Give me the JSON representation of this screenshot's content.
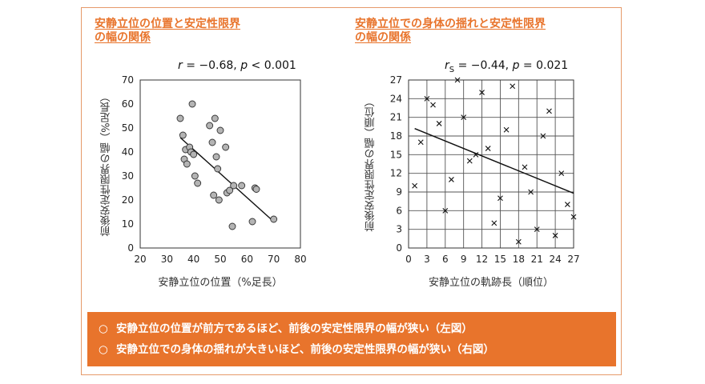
{
  "left": {
    "title_line1": "安静立位の位置と安定性限界",
    "title_line2": "の幅の関係",
    "stat": {
      "r_label": "r",
      "r_value": " = −0.68, ",
      "p_label": "p",
      "p_value": " < 0.001"
    }
  },
  "right": {
    "title_line1": "安静立位での身体の揺れと安定性限界",
    "title_line2": "の幅の関係",
    "stat": {
      "r_label": "r",
      "r_sub": "S",
      "r_value": " = −0.44, ",
      "p_label": "p",
      "p_value": " = 0.021"
    }
  },
  "summary": {
    "bullet": "○",
    "lines": [
      "安静立位の位置が前方であるほど、前後の安定性限界の幅が狭い（左図）",
      "安静立位での身体の揺れが大きいほど、前後の安定性限界の幅が狭い（右図）"
    ]
  },
  "colors": {
    "accent": "#e8742c",
    "marker_fill": "#b4b4b4",
    "grid": "#555555"
  },
  "chart_data": [
    {
      "type": "scatter",
      "marker": "circle",
      "xlabel": "安静立位の位置（%足長）",
      "ylabel": "前後安定性限界の幅（%足長）",
      "xlim": [
        20,
        80
      ],
      "ylim": [
        0,
        70
      ],
      "xticks": [
        20,
        30,
        40,
        50,
        60,
        70,
        80
      ],
      "yticks": [
        0,
        10,
        20,
        30,
        40,
        50,
        60,
        70
      ],
      "grid": false,
      "points": [
        [
          35,
          54
        ],
        [
          36,
          47
        ],
        [
          37,
          41
        ],
        [
          36.5,
          37
        ],
        [
          37.5,
          35
        ],
        [
          39.5,
          60
        ],
        [
          38.5,
          42
        ],
        [
          39,
          40
        ],
        [
          40,
          39
        ],
        [
          40.5,
          30
        ],
        [
          41.5,
          27
        ],
        [
          46,
          51
        ],
        [
          47,
          44
        ],
        [
          48,
          54
        ],
        [
          48.5,
          38
        ],
        [
          49,
          33
        ],
        [
          50,
          49
        ],
        [
          47.5,
          22
        ],
        [
          49.5,
          20
        ],
        [
          52,
          42
        ],
        [
          52.5,
          23
        ],
        [
          53.5,
          24
        ],
        [
          54.5,
          9
        ],
        [
          55,
          26
        ],
        [
          58,
          26
        ],
        [
          62,
          11
        ],
        [
          63,
          25
        ],
        [
          63.5,
          24.5
        ],
        [
          70,
          12
        ]
      ],
      "trendline": {
        "x": [
          35,
          70
        ],
        "y": [
          46,
          11
        ]
      }
    },
    {
      "type": "scatter",
      "marker": "x",
      "xlabel": "安静立位の軌跡長（順位）",
      "ylabel": "前後安定性限界の幅（順位）",
      "xlim": [
        0,
        27
      ],
      "ylim": [
        0,
        27
      ],
      "xticks": [
        0,
        3,
        6,
        9,
        12,
        15,
        18,
        21,
        24,
        27
      ],
      "yticks": [
        0,
        3,
        6,
        9,
        12,
        15,
        18,
        21,
        24,
        27
      ],
      "grid": true,
      "points": [
        [
          1,
          10
        ],
        [
          2,
          17
        ],
        [
          3,
          24
        ],
        [
          4,
          23
        ],
        [
          5,
          20
        ],
        [
          6,
          6
        ],
        [
          7,
          11
        ],
        [
          8,
          27
        ],
        [
          9,
          21
        ],
        [
          10,
          14
        ],
        [
          11,
          15
        ],
        [
          12,
          25
        ],
        [
          13,
          16
        ],
        [
          14,
          4
        ],
        [
          15,
          8
        ],
        [
          16,
          19
        ],
        [
          17,
          26
        ],
        [
          18,
          1
        ],
        [
          19,
          13
        ],
        [
          20,
          9
        ],
        [
          21,
          3
        ],
        [
          22,
          18
        ],
        [
          23,
          22
        ],
        [
          24,
          2
        ],
        [
          25,
          12
        ],
        [
          26,
          7
        ],
        [
          27,
          5
        ]
      ],
      "trendline": {
        "x": [
          1,
          27
        ],
        "y": [
          19.2,
          8.8
        ]
      }
    }
  ]
}
